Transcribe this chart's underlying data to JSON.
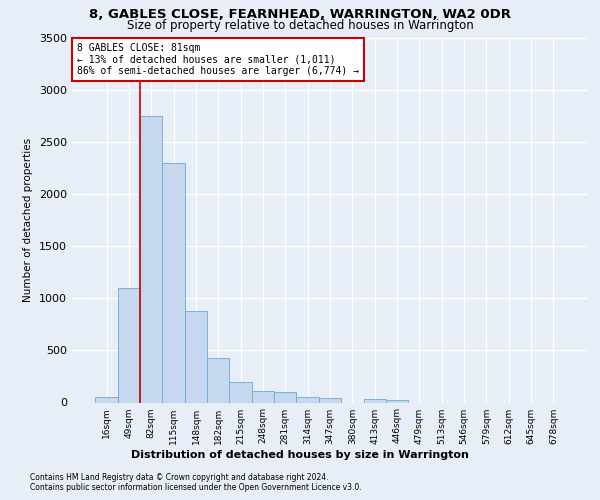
{
  "title": "8, GABLES CLOSE, FEARNHEAD, WARRINGTON, WA2 0DR",
  "subtitle": "Size of property relative to detached houses in Warrington",
  "xlabel": "Distribution of detached houses by size in Warrington",
  "ylabel": "Number of detached properties",
  "footnote1": "Contains HM Land Registry data © Crown copyright and database right 2024.",
  "footnote2": "Contains public sector information licensed under the Open Government Licence v3.0.",
  "annotation_title": "8 GABLES CLOSE: 81sqm",
  "annotation_line2": "← 13% of detached houses are smaller (1,011)",
  "annotation_line3": "86% of semi-detached houses are larger (6,774) →",
  "bar_categories": [
    "16sqm",
    "49sqm",
    "82sqm",
    "115sqm",
    "148sqm",
    "182sqm",
    "215sqm",
    "248sqm",
    "281sqm",
    "314sqm",
    "347sqm",
    "380sqm",
    "413sqm",
    "446sqm",
    "479sqm",
    "513sqm",
    "546sqm",
    "579sqm",
    "612sqm",
    "645sqm",
    "678sqm"
  ],
  "bar_values": [
    50,
    1100,
    2750,
    2300,
    880,
    430,
    200,
    110,
    105,
    55,
    40,
    0,
    30,
    25,
    0,
    0,
    0,
    0,
    0,
    0,
    0
  ],
  "bar_color": "#c5d8f0",
  "bar_edge_color": "#6aaad4",
  "highlight_line_color": "#cc0000",
  "annotation_box_color": "#ffffff",
  "annotation_box_edge": "#cc0000",
  "background_color": "#e8eef8",
  "grid_color": "#ffffff",
  "ylim": [
    0,
    3500
  ],
  "yticks": [
    0,
    500,
    1000,
    1500,
    2000,
    2500,
    3000,
    3500
  ],
  "red_line_bar_index": 2
}
